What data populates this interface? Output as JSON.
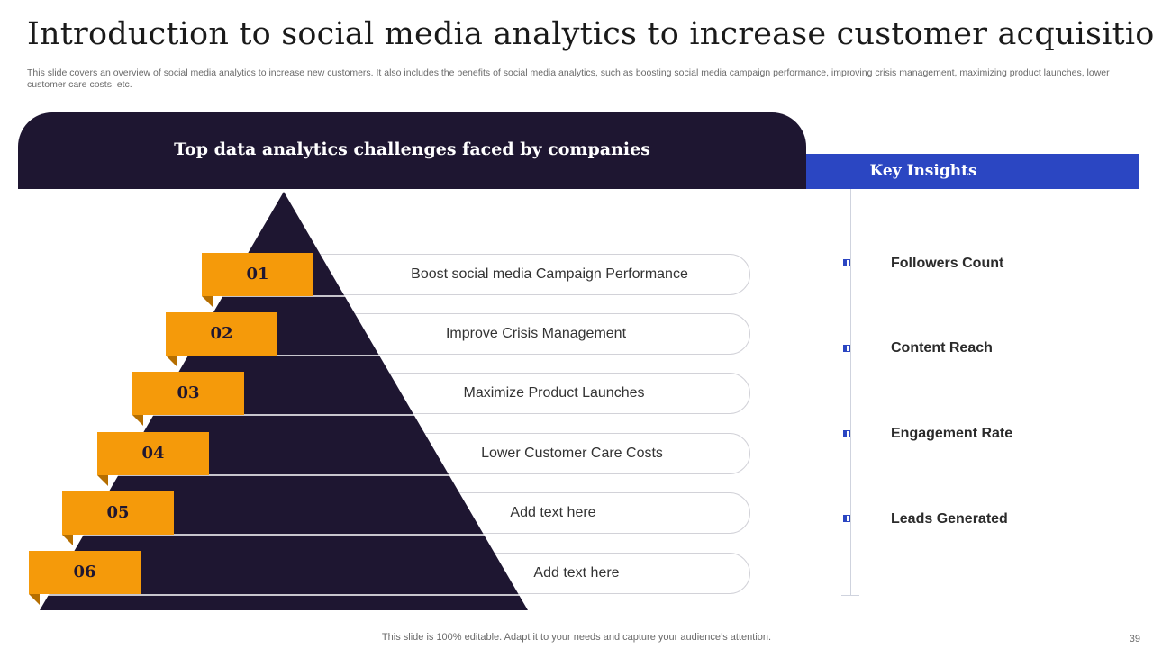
{
  "title": "Introduction to social media analytics to increase customer acquisition",
  "subtitle": "This slide covers an overview of social media analytics to increase new customers. It also includes the benefits of social media analytics, such as boosting social media campaign performance, improving crisis management, maximizing product launches, lower customer care costs, etc.",
  "left_panel": {
    "heading": "Top data analytics challenges faced by companies",
    "items": [
      {
        "num": "01",
        "text": "Boost social media Campaign Performance"
      },
      {
        "num": "02",
        "text": "Improve  Crisis Management"
      },
      {
        "num": "03",
        "text": "Maximize  Product Launches"
      },
      {
        "num": "04",
        "text": "Lower Customer Care Costs"
      },
      {
        "num": "05",
        "text": "Add text here"
      },
      {
        "num": "06",
        "text": "Add text here"
      }
    ]
  },
  "right_panel": {
    "heading": "Key Insights",
    "items": [
      {
        "label": "Followers Count"
      },
      {
        "label": "Content Reach"
      },
      {
        "label": "Engagement Rate"
      },
      {
        "label": "Leads Generated"
      }
    ]
  },
  "footer": "This slide is 100% editable. Adapt it to your needs and capture your audience’s attention.",
  "page_number": "39",
  "colors": {
    "dark": "#1e1631",
    "orange": "#f59a0a",
    "blue": "#2b46c2"
  }
}
